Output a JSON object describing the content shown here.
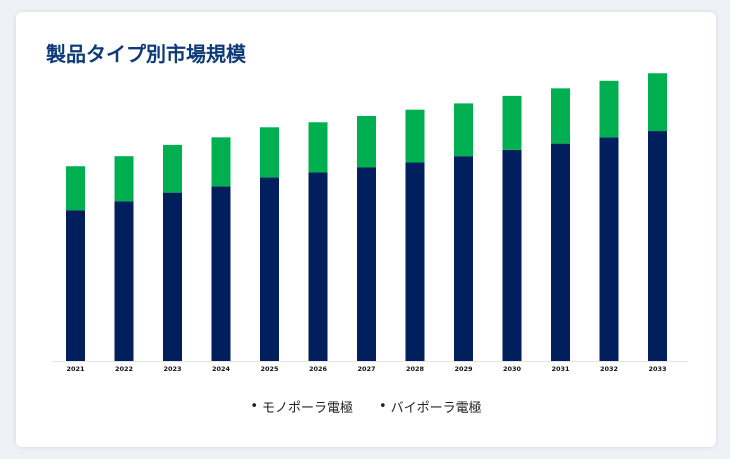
{
  "title": "製品タイプ別市場規模",
  "chart_data": {
    "type": "bar",
    "stacked": true,
    "categories": [
      "2021",
      "2022",
      "2023",
      "2024",
      "2025",
      "2026",
      "2027",
      "2028",
      "2029",
      "2030",
      "2031",
      "2032",
      "2033"
    ],
    "series": [
      {
        "name": "モノポーラ電極",
        "color": "#001f5c",
        "values": [
          120,
          127,
          134,
          139,
          146,
          150,
          154,
          158,
          163,
          168,
          173,
          178,
          183
        ]
      },
      {
        "name": "バイポーラ電極",
        "color": "#00b050",
        "values": [
          35,
          36,
          38,
          39,
          40,
          40,
          41,
          42,
          42,
          43,
          44,
          45,
          46
        ]
      }
    ],
    "ylim": [
      0,
      230
    ],
    "grid": false,
    "legend": "bottom"
  }
}
